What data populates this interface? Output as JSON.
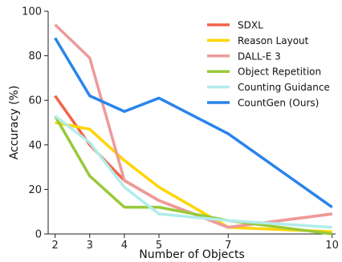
{
  "chart_data": {
    "type": "line",
    "title": "",
    "xlabel": "Number of Objects",
    "ylabel": "Accuracy (%)",
    "x": [
      2,
      3,
      4,
      5,
      7,
      10
    ],
    "xticks": [
      "2",
      "3",
      "4",
      "5",
      "7",
      "10"
    ],
    "xlim": [
      1.8,
      10.1
    ],
    "ylim": [
      0,
      100
    ],
    "yticks": [
      "0",
      "20",
      "40",
      "60",
      "80",
      "100"
    ],
    "grid": false,
    "legend_position": "top-right",
    "series": [
      {
        "name": "SDXL",
        "color": "#f4634a",
        "values": [
          62,
          40,
          24,
          15,
          3,
          9
        ]
      },
      {
        "name": "Reason Layout",
        "color": "#ffd500",
        "values": [
          50,
          47,
          33,
          21,
          3,
          1
        ]
      },
      {
        "name": "DALL-E 3",
        "color": "#ed9a9a",
        "values": [
          94,
          79,
          24,
          15,
          3,
          9
        ]
      },
      {
        "name": "Object Repetition",
        "color": "#99c93a",
        "values": [
          53,
          26,
          12,
          12,
          6,
          0
        ]
      },
      {
        "name": "Counting Guidance",
        "color": "#b2ecec",
        "values": [
          53,
          41,
          21,
          9,
          6,
          3
        ]
      },
      {
        "name": "CountGen (Ours)",
        "color": "#2a84ea",
        "values": [
          88,
          62,
          55,
          61,
          45,
          12
        ]
      }
    ]
  }
}
